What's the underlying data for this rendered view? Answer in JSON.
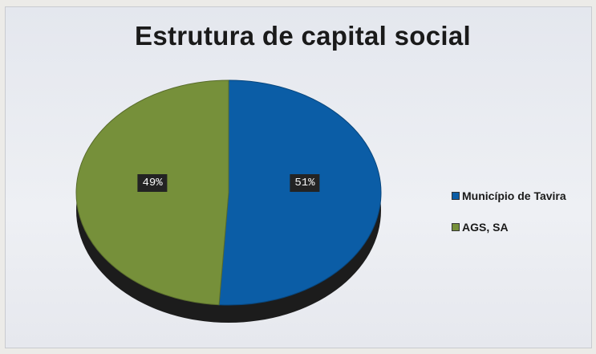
{
  "chart_data": {
    "type": "pie",
    "title": "Estrutura de capital social",
    "categories": [
      "Município de Tavira",
      "AGS, SA"
    ],
    "values": [
      51,
      49
    ],
    "labels": [
      "51%",
      "49%"
    ],
    "colors": [
      "#0b5da6",
      "#76903a"
    ],
    "legend_position": "right",
    "style": "3d"
  }
}
